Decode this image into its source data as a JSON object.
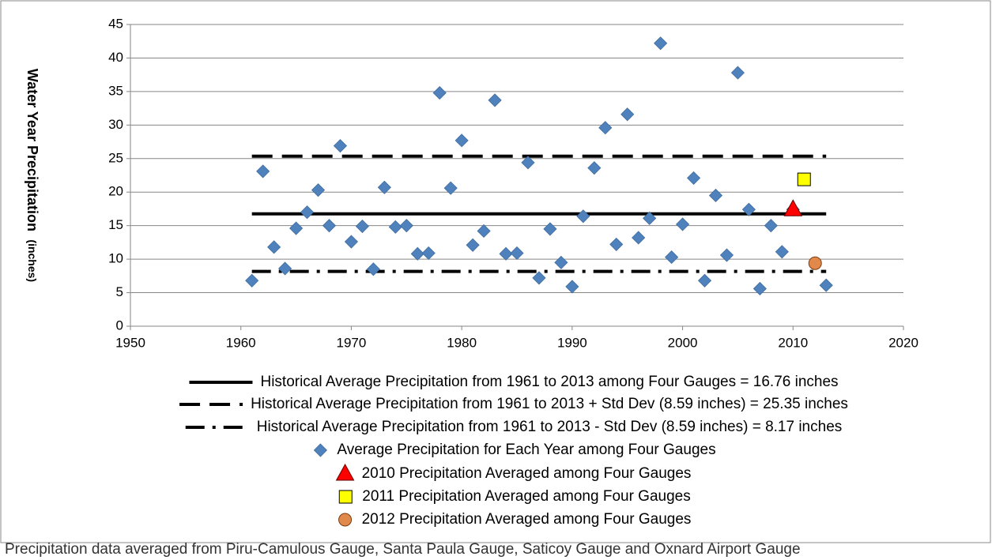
{
  "chart_data": {
    "type": "scatter",
    "xlim": [
      1950,
      2020
    ],
    "xticks": [
      1950,
      1960,
      1970,
      1980,
      1990,
      2000,
      2010,
      2020
    ],
    "ylim": [
      0,
      45
    ],
    "yticks": [
      0,
      5,
      10,
      15,
      20,
      25,
      30,
      35,
      40,
      45
    ],
    "y_label": "Water Year Precipitation",
    "y_label_unit": "(inches)",
    "grid": true,
    "series": [
      {
        "name": "Historical Average Precipitation from 1961 to 2013 among Four Gauges = 16.76 inches",
        "type": "line",
        "style": "solid",
        "color": "#000000",
        "x": [
          1961,
          2013
        ],
        "values": [
          16.76,
          16.76
        ]
      },
      {
        "name": "Historical Average Precipitation from 1961 to 2013 + Std Dev (8.59 inches) = 25.35 inches",
        "type": "line",
        "style": "dash",
        "color": "#000000",
        "x": [
          1961,
          2013
        ],
        "values": [
          25.35,
          25.35
        ]
      },
      {
        "name": "Historical Average Precipitation from 1961 to 2013 - Std Dev (8.59 inches) = 8.17 inches",
        "type": "line",
        "style": "dashdot",
        "color": "#000000",
        "x": [
          1961,
          2013
        ],
        "values": [
          8.17,
          8.17
        ]
      },
      {
        "name": "Average Precipitation for Each Year among Four Gauges",
        "type": "scatter",
        "marker": "diamond",
        "color": "#4f81bd",
        "x": [
          1961,
          1962,
          1963,
          1964,
          1965,
          1966,
          1967,
          1968,
          1969,
          1970,
          1971,
          1972,
          1973,
          1974,
          1975,
          1976,
          1977,
          1978,
          1979,
          1980,
          1981,
          1982,
          1983,
          1984,
          1985,
          1986,
          1987,
          1988,
          1989,
          1990,
          1991,
          1992,
          1993,
          1994,
          1995,
          1996,
          1997,
          1998,
          1999,
          2000,
          2001,
          2002,
          2003,
          2004,
          2005,
          2006,
          2007,
          2008,
          2009,
          2010,
          2013
        ],
        "values": [
          6.8,
          23.1,
          11.8,
          8.6,
          14.6,
          17.0,
          20.3,
          15.0,
          26.9,
          12.6,
          14.9,
          8.5,
          20.7,
          14.8,
          15.0,
          10.8,
          10.9,
          34.8,
          20.6,
          27.7,
          12.1,
          14.2,
          33.7,
          10.8,
          10.9,
          24.4,
          7.2,
          14.5,
          9.5,
          5.9,
          16.4,
          23.6,
          29.6,
          12.2,
          31.6,
          13.2,
          16.1,
          42.2,
          10.3,
          15.2,
          22.1,
          6.8,
          19.5,
          10.6,
          37.8,
          17.4,
          5.6,
          15.0,
          11.1,
          17.4,
          6.1
        ]
      },
      {
        "name": "2010 Precipitation Averaged among Four Gauges",
        "type": "scatter",
        "marker": "triangle",
        "color": "#ff0000",
        "x": [
          2010
        ],
        "values": [
          17.4
        ]
      },
      {
        "name": "2011 Precipitation Averaged among Four Gauges",
        "type": "scatter",
        "marker": "square",
        "color": "#ffff00",
        "x": [
          2011
        ],
        "values": [
          21.9
        ]
      },
      {
        "name": "2012 Precipitation Averaged among Four Gauges",
        "type": "scatter",
        "marker": "circle",
        "color": "#e0894a",
        "x": [
          2012
        ],
        "values": [
          9.4
        ]
      }
    ],
    "note": "Precipitation data averaged from Piru-Camulous Gauge, Santa Paula Gauge, Saticoy Gauge and Oxnard Airport  Gauge"
  }
}
